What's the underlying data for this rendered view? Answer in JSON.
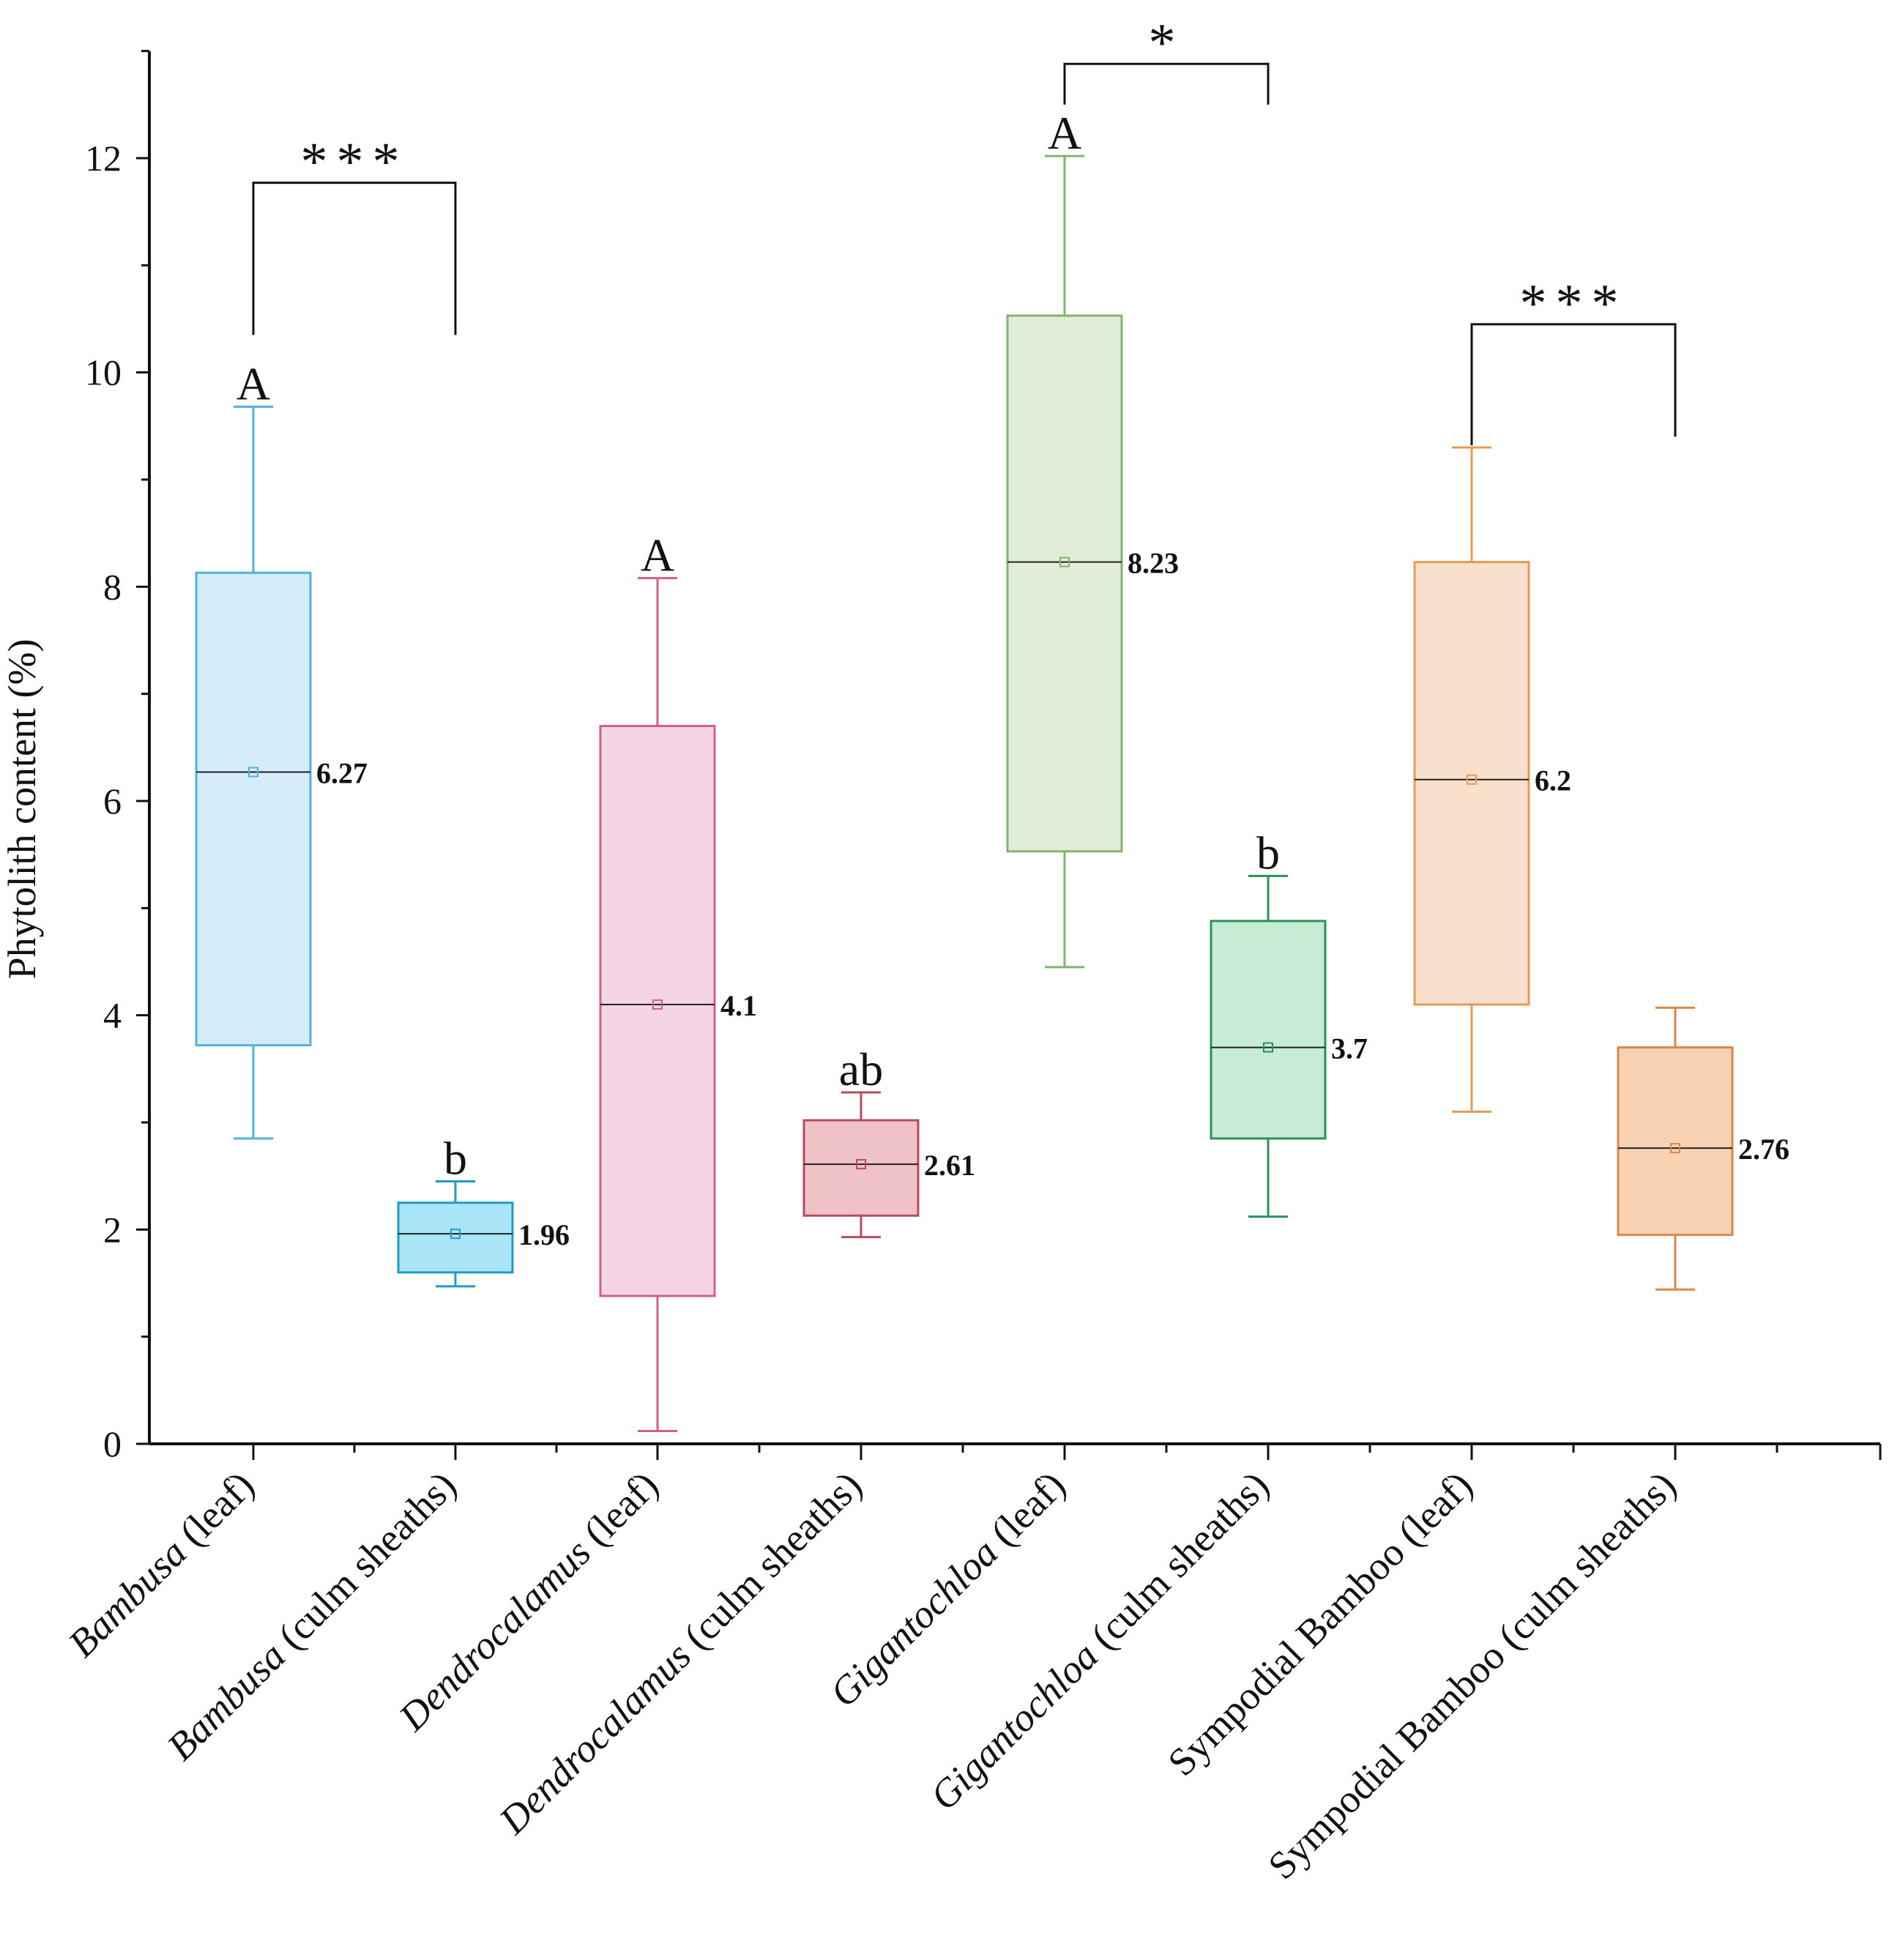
{
  "chart_data": {
    "type": "box",
    "ylabel": "Phytolith content (%)",
    "ylim": [
      0,
      13
    ],
    "yticks": [
      0,
      2,
      4,
      6,
      8,
      10,
      12
    ],
    "categories": [
      {
        "genus": "Bambusa",
        "part": " (leaf)"
      },
      {
        "genus": "Bambusa",
        "part": " (culm sheaths)"
      },
      {
        "genus": "Dendrocalamus",
        "part": " (leaf)"
      },
      {
        "genus": "Dendrocalamus",
        "part": " (culm sheaths)"
      },
      {
        "genus": "Gigantochloa",
        "part": " (leaf)"
      },
      {
        "genus": "Gigantochloa",
        "part": " (culm sheaths)"
      },
      {
        "genus": "",
        "part": "Sympodial Bamboo (leaf)"
      },
      {
        "genus": "",
        "part": "Sympodial Bamboo (culm sheaths)"
      }
    ],
    "boxes": [
      {
        "min": 2.85,
        "q1": 3.72,
        "median": 6.27,
        "q3": 8.13,
        "max": 9.68,
        "mean": 6.27,
        "mean_label": "6.27",
        "letter": "A",
        "stroke": "#4fb3dc",
        "fill": "#d6ecf8"
      },
      {
        "min": 1.47,
        "q1": 1.6,
        "median": 1.96,
        "q3": 2.25,
        "max": 2.45,
        "mean": 1.96,
        "mean_label": "1.96",
        "letter": "b",
        "stroke": "#1f9bc4",
        "fill": "#a9e4f7"
      },
      {
        "min": 0.12,
        "q1": 1.38,
        "median": 4.1,
        "q3": 6.7,
        "max": 8.08,
        "mean": 4.1,
        "mean_label": "4.1",
        "letter": "A",
        "stroke": "#cf5f8c",
        "fill": "#f5d5e4"
      },
      {
        "min": 1.93,
        "q1": 2.13,
        "median": 2.61,
        "q3": 3.02,
        "max": 3.28,
        "mean": 2.61,
        "mean_label": "2.61",
        "letter": "ab",
        "stroke": "#b94b5e",
        "fill": "#efc2c8"
      },
      {
        "min": 4.45,
        "q1": 5.53,
        "median": 8.23,
        "q3": 10.53,
        "max": 12.02,
        "mean": 8.23,
        "mean_label": "8.23",
        "letter": "A",
        "stroke": "#80b66a",
        "fill": "#e1edd8"
      },
      {
        "min": 2.12,
        "q1": 2.85,
        "median": 3.7,
        "q3": 4.88,
        "max": 5.3,
        "mean": 3.7,
        "mean_label": "3.7",
        "letter": "b",
        "stroke": "#2e8f5a",
        "fill": "#c6ecd3"
      },
      {
        "min": 3.1,
        "q1": 4.1,
        "median": 6.2,
        "q3": 8.23,
        "max": 9.3,
        "mean": 6.2,
        "mean_label": "6.2",
        "letter": "",
        "stroke": "#e39b55",
        "fill": "#f8e0cc"
      },
      {
        "min": 1.44,
        "q1": 1.95,
        "median": 2.76,
        "q3": 3.7,
        "max": 4.07,
        "mean": 2.76,
        "mean_label": "2.76",
        "letter": "",
        "stroke": "#d9874a",
        "fill": "#f8d2b2"
      }
    ],
    "significance": [
      {
        "from": 0,
        "to": 1,
        "label": "***",
        "y": 11.77,
        "left_end": 10.35,
        "right_end": 10.35
      },
      {
        "from": 4,
        "to": 5,
        "label": "*",
        "y": 12.88,
        "left_end": 12.5,
        "right_end": 12.5
      },
      {
        "from": 6,
        "to": 7,
        "label": "***",
        "y": 10.45,
        "left_end": 9.32,
        "right_end": 9.4
      }
    ]
  }
}
